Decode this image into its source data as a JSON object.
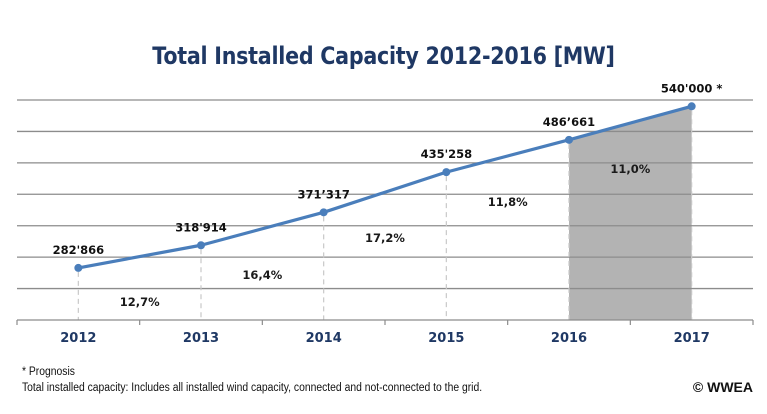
{
  "chart_data": {
    "type": "line",
    "title": "Total Installed Capacity 2012-2016 [MW]",
    "xlabel": "",
    "ylabel": "",
    "categories": [
      "2012",
      "2013",
      "2014",
      "2015",
      "2016",
      "2017"
    ],
    "series": [
      {
        "name": "Total Installed Capacity [MW]",
        "color": "#4a7ebb",
        "values": [
          282866,
          318914,
          371317,
          435258,
          486661,
          540000
        ]
      }
    ],
    "value_labels": [
      "282'866",
      "318'914",
      "371’317",
      "435'258",
      "486’661",
      "540'000 *"
    ],
    "growth_labels": [
      "12,7%",
      "16,4%",
      "17,2%",
      "11,8%",
      "11,0%"
    ],
    "forecast_range": [
      "2016",
      "2017"
    ],
    "forecast_color": "#b3b3b3",
    "ylim": [
      200000,
      550000
    ],
    "y_gridline_step": 50000,
    "grid": true,
    "y_tick_labels_shown": false,
    "legend": "none"
  },
  "footnotes": {
    "prognosis": "* Prognosis",
    "definition": "Total installed capacity: Includes all installed wind capacity, connected and not-connected to the grid."
  },
  "copyright": "© WWEA"
}
